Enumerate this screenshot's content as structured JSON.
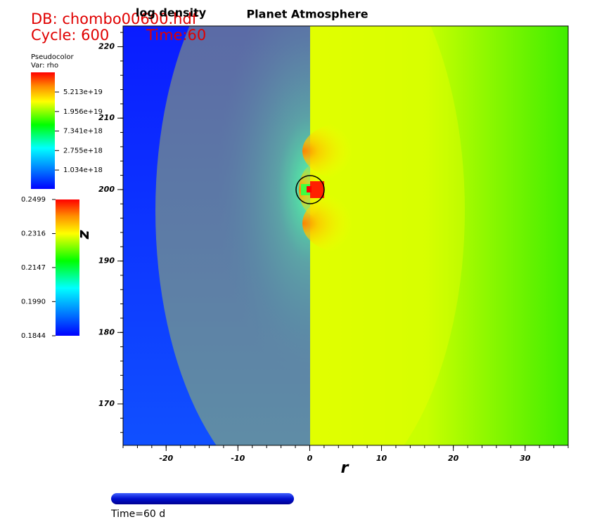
{
  "header": {
    "db": "DB: chombo00600.hdf",
    "cycle": "Cycle: 600",
    "time": "Time:60"
  },
  "chart_data": {
    "type": "pseudocolor",
    "title": "Planet Atmosphere",
    "subtitle": "log density",
    "x_label": "r",
    "y_label": "z",
    "xlim": [
      -26,
      36
    ],
    "ylim": [
      164.2,
      222.9
    ],
    "xticks": [
      -20,
      -10,
      0,
      10,
      20,
      30
    ],
    "yticks": [
      170,
      180,
      190,
      200,
      210,
      220
    ],
    "legends": [
      {
        "title": "Pseudocolor",
        "variable": "Var: rho",
        "log": true,
        "range": [
          4e+17,
          1.4e+20
        ],
        "ticks": [
          {
            "value": 5.213e+19,
            "label": "5.213e+19"
          },
          {
            "value": 1.956e+19,
            "label": "1.956e+19"
          },
          {
            "value": 7.341e+18,
            "label": "7.341e+18"
          },
          {
            "value": 2.755e+18,
            "label": "2.755e+18"
          },
          {
            "value": 1.034e+18,
            "label": "1.034e+18"
          }
        ]
      },
      {
        "log": true,
        "range": [
          0.1844,
          0.2499
        ],
        "ticks": [
          0.2499,
          0.2316,
          0.2147,
          {
            "value": 0.199,
            "label": "0.1990"
          },
          0.1844
        ]
      }
    ]
  },
  "time_slider": {
    "label": "Time=60 d"
  }
}
